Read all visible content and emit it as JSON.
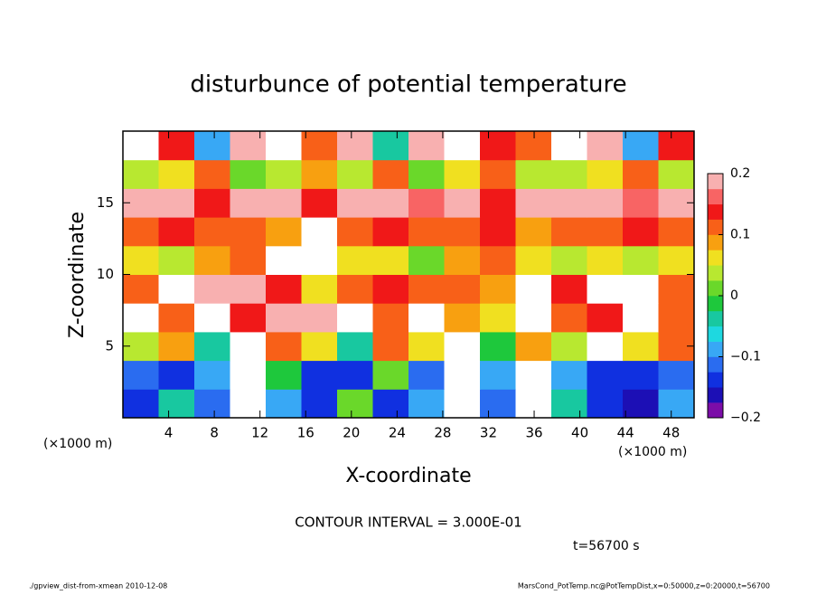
{
  "chart_data": {
    "type": "heatmap",
    "title": "disturbunce of potential temperature",
    "x_label": "X-coordinate",
    "y_label": "Z-coordinate",
    "x_unit_left": "(×1000 m)",
    "x_unit_right": "(×1000 m)",
    "xlim": [
      0,
      50
    ],
    "xticks": [
      4,
      8,
      12,
      16,
      20,
      24,
      28,
      32,
      36,
      40,
      44,
      48
    ],
    "ylim": [
      0,
      20
    ],
    "yticks": [
      5,
      10,
      15
    ],
    "values": [
      [
        -0.15,
        -0.05,
        -0.12,
        0.25,
        -0.1,
        -0.14,
        0.02,
        -0.13,
        -0.08,
        0.25,
        -0.12,
        0.25,
        -0.05,
        -0.14,
        -0.16,
        -0.1
      ],
      [
        -0.12,
        -0.14,
        -0.1,
        0.25,
        -0.02,
        -0.13,
        -0.15,
        0.0,
        -0.12,
        0.25,
        -0.1,
        0.25,
        -0.1,
        -0.15,
        -0.13,
        -0.12
      ],
      [
        0.03,
        0.08,
        -0.05,
        0.25,
        0.12,
        0.05,
        -0.03,
        0.1,
        0.06,
        0.25,
        -0.02,
        0.08,
        0.03,
        0.25,
        0.05,
        0.1
      ],
      [
        0.25,
        0.12,
        0.25,
        0.15,
        0.18,
        0.2,
        0.25,
        0.1,
        0.25,
        0.08,
        0.05,
        0.25,
        0.1,
        0.15,
        0.25,
        0.1
      ],
      [
        0.1,
        0.25,
        0.2,
        0.18,
        0.15,
        0.05,
        0.12,
        0.15,
        0.1,
        0.12,
        0.08,
        0.25,
        0.15,
        0.25,
        0.25,
        0.1
      ],
      [
        0.05,
        0.03,
        0.08,
        0.1,
        0.25,
        0.25,
        0.07,
        0.05,
        0.02,
        0.08,
        0.1,
        0.05,
        0.03,
        0.06,
        0.04,
        0.05
      ],
      [
        0.12,
        0.15,
        0.1,
        0.12,
        0.08,
        0.25,
        0.1,
        0.15,
        0.12,
        0.1,
        0.15,
        0.08,
        0.12,
        0.1,
        0.14,
        0.12
      ],
      [
        0.18,
        0.2,
        0.15,
        0.18,
        0.2,
        0.15,
        0.18,
        0.2,
        0.17,
        0.18,
        0.15,
        0.2,
        0.18,
        0.19,
        0.16,
        0.18
      ],
      [
        0.03,
        0.05,
        0.1,
        0.02,
        0.04,
        0.08,
        0.03,
        0.12,
        0.02,
        0.05,
        0.1,
        0.03,
        0.04,
        0.06,
        0.1,
        0.03
      ],
      [
        0.25,
        0.15,
        -0.1,
        0.2,
        0.25,
        0.1,
        0.18,
        -0.05,
        0.2,
        0.25,
        0.15,
        0.1,
        0.25,
        0.2,
        -0.08,
        0.15
      ]
    ],
    "colorbar": {
      "lim": [
        -0.2,
        0.2
      ],
      "ticks": [
        {
          "value": -0.2,
          "label": "−0.2"
        },
        {
          "value": -0.1,
          "label": "−0.1"
        },
        0,
        0.1,
        0.2
      ],
      "colors": [
        "#7b0da8",
        "#1c0fb5",
        "#1030e0",
        "#2a6cf0",
        "#38a8f5",
        "#1ed8e0",
        "#18c8a0",
        "#1ec83c",
        "#6ad82a",
        "#b8e830",
        "#f0e020",
        "#f8a010",
        "#f86018",
        "#f01818",
        "#f86464",
        "#f8b0b0"
      ]
    },
    "contour_note": "CONTOUR INTERVAL = 3.000E-01",
    "time_label": "t=56700 s",
    "footer_left": "./gpview_dist-from-xmean  2010-12-08",
    "footer_right": "MarsCond_PotTemp.nc@PotTempDist,x=0:50000,z=0:20000,t=56700"
  }
}
